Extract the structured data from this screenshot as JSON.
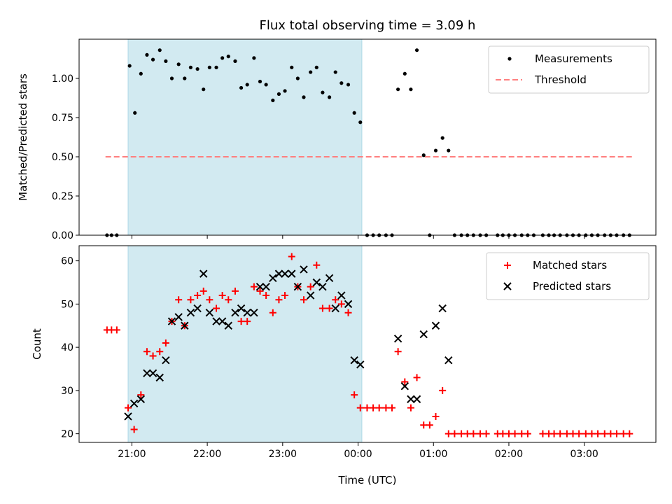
{
  "chart_data": {
    "title": "Flux total observing time = 3.09 h",
    "xlabel": "Time (UTC)",
    "x_tick_labels": [
      "21:00",
      "22:00",
      "23:00",
      "00:00",
      "01:00",
      "02:00",
      "03:00"
    ],
    "x_tick_hours": [
      21,
      22,
      23,
      24,
      25,
      26,
      27
    ],
    "xlim_hours": [
      20.3,
      27.95
    ],
    "observing_window_hours": [
      20.95,
      24.05
    ],
    "colors": {
      "window": "#add8e6",
      "measurement": "#000000",
      "threshold": "#ff7f7f",
      "matched": "#ff0000",
      "predicted": "#000000"
    },
    "panels": [
      {
        "type": "scatter",
        "ylabel": "Matched/Predicted stars",
        "ylim": [
          0,
          1.25
        ],
        "y_ticks": [
          0,
          0.25,
          0.5,
          0.75,
          1.0
        ],
        "y_tick_labels": [
          "0.00",
          "0.25",
          "0.50",
          "0.75",
          "1.00"
        ],
        "legend": [
          "Measurements",
          "Threshold"
        ],
        "legend_position": "top-right",
        "threshold": {
          "value": 0.5,
          "x_range_hours": [
            20.65,
            27.65
          ]
        },
        "series": [
          {
            "name": "Measurements",
            "points": [
              [
                20.67,
                0
              ],
              [
                20.73,
                0
              ],
              [
                20.8,
                0
              ],
              [
                20.97,
                1.08
              ],
              [
                21.04,
                0.78
              ],
              [
                21.12,
                1.03
              ],
              [
                21.2,
                1.15
              ],
              [
                21.28,
                1.12
              ],
              [
                21.37,
                1.18
              ],
              [
                21.45,
                1.11
              ],
              [
                21.53,
                1.0
              ],
              [
                21.62,
                1.09
              ],
              [
                21.7,
                1.0
              ],
              [
                21.78,
                1.07
              ],
              [
                21.87,
                1.06
              ],
              [
                21.95,
                0.93
              ],
              [
                22.03,
                1.07
              ],
              [
                22.12,
                1.07
              ],
              [
                22.2,
                1.13
              ],
              [
                22.28,
                1.14
              ],
              [
                22.37,
                1.11
              ],
              [
                22.45,
                0.94
              ],
              [
                22.53,
                0.96
              ],
              [
                22.62,
                1.13
              ],
              [
                22.7,
                0.98
              ],
              [
                22.78,
                0.96
              ],
              [
                22.87,
                0.86
              ],
              [
                22.95,
                0.9
              ],
              [
                23.03,
                0.92
              ],
              [
                23.12,
                1.07
              ],
              [
                23.2,
                1.0
              ],
              [
                23.28,
                0.88
              ],
              [
                23.37,
                1.04
              ],
              [
                23.45,
                1.07
              ],
              [
                23.53,
                0.91
              ],
              [
                23.62,
                0.88
              ],
              [
                23.7,
                1.04
              ],
              [
                23.78,
                0.97
              ],
              [
                23.87,
                0.96
              ],
              [
                23.95,
                0.78
              ],
              [
                24.03,
                0.72
              ],
              [
                24.12,
                0
              ],
              [
                24.2,
                0
              ],
              [
                24.28,
                0
              ],
              [
                24.37,
                0
              ],
              [
                24.45,
                0
              ],
              [
                24.53,
                0.93
              ],
              [
                24.62,
                1.03
              ],
              [
                24.7,
                0.93
              ],
              [
                24.78,
                1.18
              ],
              [
                24.87,
                0.51
              ],
              [
                24.95,
                0
              ],
              [
                25.03,
                0.54
              ],
              [
                25.12,
                0.62
              ],
              [
                25.2,
                0.54
              ],
              [
                25.28,
                0
              ],
              [
                25.37,
                0
              ],
              [
                25.45,
                0
              ],
              [
                25.53,
                0
              ],
              [
                25.62,
                0
              ],
              [
                25.7,
                0
              ],
              [
                25.85,
                0
              ],
              [
                25.92,
                0
              ],
              [
                26.0,
                0
              ],
              [
                26.08,
                0
              ],
              [
                26.17,
                0
              ],
              [
                26.25,
                0
              ],
              [
                26.33,
                0
              ],
              [
                26.45,
                0
              ],
              [
                26.53,
                0
              ],
              [
                26.6,
                0
              ],
              [
                26.68,
                0
              ],
              [
                26.77,
                0
              ],
              [
                26.85,
                0
              ],
              [
                26.93,
                0
              ],
              [
                27.02,
                0
              ],
              [
                27.1,
                0
              ],
              [
                27.18,
                0
              ],
              [
                27.27,
                0
              ],
              [
                27.35,
                0
              ],
              [
                27.43,
                0
              ],
              [
                27.52,
                0
              ],
              [
                27.6,
                0
              ]
            ]
          }
        ]
      },
      {
        "type": "scatter",
        "ylabel": "Count",
        "ylim": [
          18,
          63.5
        ],
        "y_ticks": [
          20,
          30,
          40,
          50,
          60
        ],
        "y_tick_labels": [
          "20",
          "30",
          "40",
          "50",
          "60"
        ],
        "legend": [
          "Matched stars",
          "Predicted stars"
        ],
        "legend_position": "top-right",
        "series": [
          {
            "name": "Matched stars",
            "marker": "plus",
            "points": [
              [
                20.67,
                44
              ],
              [
                20.73,
                44
              ],
              [
                20.8,
                44
              ],
              [
                20.95,
                26
              ],
              [
                21.03,
                21
              ],
              [
                21.12,
                29
              ],
              [
                21.2,
                39
              ],
              [
                21.28,
                38
              ],
              [
                21.37,
                39
              ],
              [
                21.45,
                41
              ],
              [
                21.53,
                46
              ],
              [
                21.62,
                51
              ],
              [
                21.7,
                45
              ],
              [
                21.78,
                51
              ],
              [
                21.87,
                52
              ],
              [
                21.95,
                53
              ],
              [
                22.03,
                51
              ],
              [
                22.12,
                49
              ],
              [
                22.2,
                52
              ],
              [
                22.28,
                51
              ],
              [
                22.37,
                53
              ],
              [
                22.45,
                46
              ],
              [
                22.53,
                46
              ],
              [
                22.62,
                54
              ],
              [
                22.7,
                53
              ],
              [
                22.78,
                52
              ],
              [
                22.87,
                48
              ],
              [
                22.95,
                51
              ],
              [
                23.03,
                52
              ],
              [
                23.12,
                61
              ],
              [
                23.2,
                54
              ],
              [
                23.28,
                51
              ],
              [
                23.37,
                54
              ],
              [
                23.45,
                59
              ],
              [
                23.53,
                49
              ],
              [
                23.62,
                49
              ],
              [
                23.7,
                51
              ],
              [
                23.78,
                50
              ],
              [
                23.87,
                48
              ],
              [
                23.95,
                29
              ],
              [
                24.03,
                26
              ],
              [
                24.12,
                26
              ],
              [
                24.2,
                26
              ],
              [
                24.28,
                26
              ],
              [
                24.37,
                26
              ],
              [
                24.45,
                26
              ],
              [
                24.53,
                39
              ],
              [
                24.62,
                32
              ],
              [
                24.7,
                26
              ],
              [
                24.78,
                33
              ],
              [
                24.87,
                22
              ],
              [
                24.95,
                22
              ],
              [
                25.03,
                24
              ],
              [
                25.12,
                30
              ],
              [
                25.2,
                20
              ],
              [
                25.28,
                20
              ],
              [
                25.37,
                20
              ],
              [
                25.45,
                20
              ],
              [
                25.53,
                20
              ],
              [
                25.62,
                20
              ],
              [
                25.7,
                20
              ],
              [
                25.85,
                20
              ],
              [
                25.92,
                20
              ],
              [
                26.0,
                20
              ],
              [
                26.08,
                20
              ],
              [
                26.17,
                20
              ],
              [
                26.25,
                20
              ],
              [
                26.45,
                20
              ],
              [
                26.53,
                20
              ],
              [
                26.6,
                20
              ],
              [
                26.68,
                20
              ],
              [
                26.77,
                20
              ],
              [
                26.85,
                20
              ],
              [
                26.93,
                20
              ],
              [
                27.02,
                20
              ],
              [
                27.1,
                20
              ],
              [
                27.18,
                20
              ],
              [
                27.27,
                20
              ],
              [
                27.35,
                20
              ],
              [
                27.43,
                20
              ],
              [
                27.52,
                20
              ],
              [
                27.6,
                20
              ]
            ]
          },
          {
            "name": "Predicted stars",
            "marker": "cross",
            "points": [
              [
                20.95,
                24
              ],
              [
                21.03,
                27
              ],
              [
                21.12,
                28
              ],
              [
                21.2,
                34
              ],
              [
                21.28,
                34
              ],
              [
                21.37,
                33
              ],
              [
                21.45,
                37
              ],
              [
                21.53,
                46
              ],
              [
                21.62,
                47
              ],
              [
                21.7,
                45
              ],
              [
                21.78,
                48
              ],
              [
                21.87,
                49
              ],
              [
                21.95,
                57
              ],
              [
                22.03,
                48
              ],
              [
                22.12,
                46
              ],
              [
                22.2,
                46
              ],
              [
                22.28,
                45
              ],
              [
                22.37,
                48
              ],
              [
                22.45,
                49
              ],
              [
                22.53,
                48
              ],
              [
                22.62,
                48
              ],
              [
                22.7,
                54
              ],
              [
                22.78,
                54
              ],
              [
                22.87,
                56
              ],
              [
                22.95,
                57
              ],
              [
                23.03,
                57
              ],
              [
                23.12,
                57
              ],
              [
                23.2,
                54
              ],
              [
                23.28,
                58
              ],
              [
                23.37,
                52
              ],
              [
                23.45,
                55
              ],
              [
                23.53,
                54
              ],
              [
                23.62,
                56
              ],
              [
                23.7,
                49
              ],
              [
                23.78,
                52
              ],
              [
                23.87,
                50
              ],
              [
                23.95,
                37
              ],
              [
                24.03,
                36
              ],
              [
                24.53,
                42
              ],
              [
                24.62,
                31
              ],
              [
                24.7,
                28
              ],
              [
                24.78,
                28
              ],
              [
                24.87,
                43
              ],
              [
                25.03,
                45
              ],
              [
                25.12,
                49
              ],
              [
                25.2,
                37
              ]
            ]
          }
        ]
      }
    ]
  }
}
